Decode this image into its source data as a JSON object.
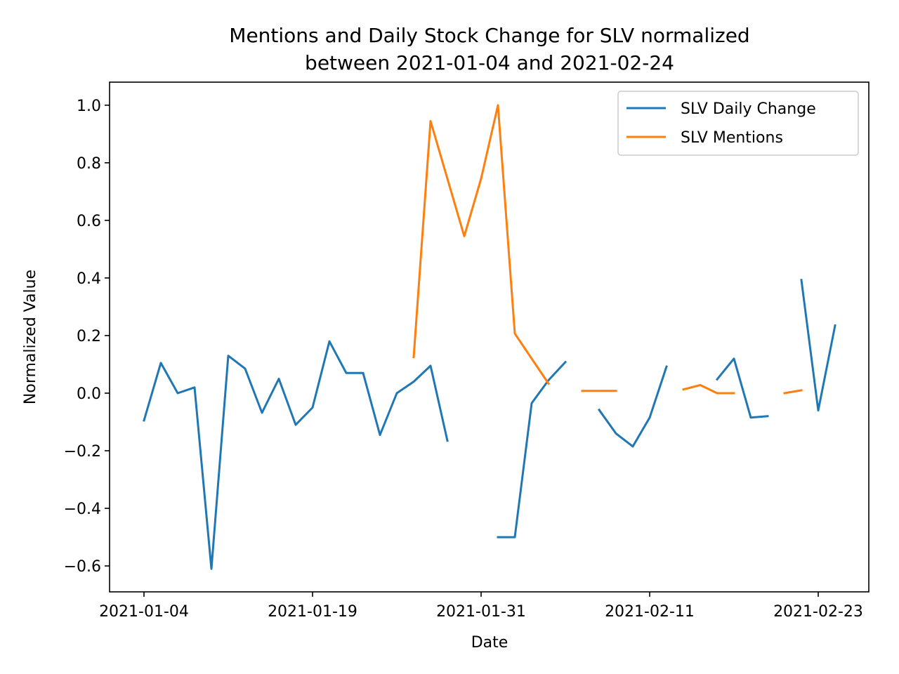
{
  "chart_data": {
    "type": "line",
    "title_lines": [
      "Mentions and Daily Stock Change for SLV normalized",
      "between 2021-01-04 and 2021-02-24"
    ],
    "xlabel": "Date",
    "ylabel": "Normalized Value",
    "x_tick_labels": [
      "2021-01-04",
      "2021-01-19",
      "2021-01-31",
      "2021-02-11",
      "2021-02-23"
    ],
    "x_tick_index": [
      0,
      10,
      20,
      30,
      40
    ],
    "y_ticks": [
      -0.6,
      -0.4,
      -0.2,
      0.0,
      0.2,
      0.4,
      0.6,
      0.8,
      1.0
    ],
    "y_tick_labels": [
      "−0.6",
      "−0.4",
      "−0.2",
      "0.0",
      "0.2",
      "0.4",
      "0.6",
      "0.8",
      "1.0"
    ],
    "ylim": [
      -0.69,
      1.08
    ],
    "grid": false,
    "legend_position": "top-right",
    "series": [
      {
        "name": "SLV Daily Change",
        "color": "#1f77b4",
        "values": [
          -0.095,
          0.105,
          0.0,
          0.02,
          -0.61,
          0.13,
          0.085,
          -0.068,
          0.05,
          -0.11,
          -0.05,
          0.18,
          0.07,
          0.07,
          -0.145,
          0.0,
          0.04,
          0.095,
          -0.165,
          null,
          null,
          -0.5,
          -0.5,
          -0.035,
          0.045,
          0.108,
          null,
          -0.058,
          -0.14,
          -0.185,
          -0.085,
          0.092,
          null,
          null,
          0.048,
          0.12,
          -0.085,
          -0.08,
          null,
          0.393,
          -0.06,
          0.235
        ]
      },
      {
        "name": "SLV Mentions",
        "color": "#ff7f0e",
        "values": [
          null,
          null,
          null,
          null,
          null,
          null,
          null,
          null,
          null,
          null,
          null,
          null,
          null,
          null,
          null,
          null,
          0.125,
          0.945,
          0.745,
          0.545,
          0.745,
          1.0,
          0.207,
          0.12,
          0.033,
          null,
          0.008,
          0.008,
          0.008,
          null,
          null,
          null,
          0.013,
          0.028,
          0.0,
          0.0,
          null,
          null,
          0.0,
          0.01,
          null,
          null
        ]
      }
    ]
  }
}
